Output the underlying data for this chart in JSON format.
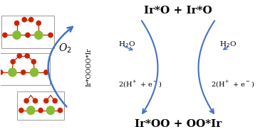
{
  "bg_color": "#ffffff",
  "arrow_color": "#4472c4",
  "text_color": "#000000",
  "red": "#cc2200",
  "green": "#88bb33",
  "gray_box": "#999999",
  "top_label": "Ir*O + Ir*O",
  "bottom_label": "Ir*OO + OO*Ir",
  "left_label": "Ir*OOOO*Ir",
  "o2_label": "O$_2$",
  "h2o_left": "H$_2$O",
  "h2o_right": "H$_2$O",
  "elec_left": "2(H$^+$ + e$^-$)",
  "elec_right": "2(H$^+$ + e$^-$)",
  "fig_w": 3.72,
  "fig_h": 1.89,
  "dpi": 100
}
